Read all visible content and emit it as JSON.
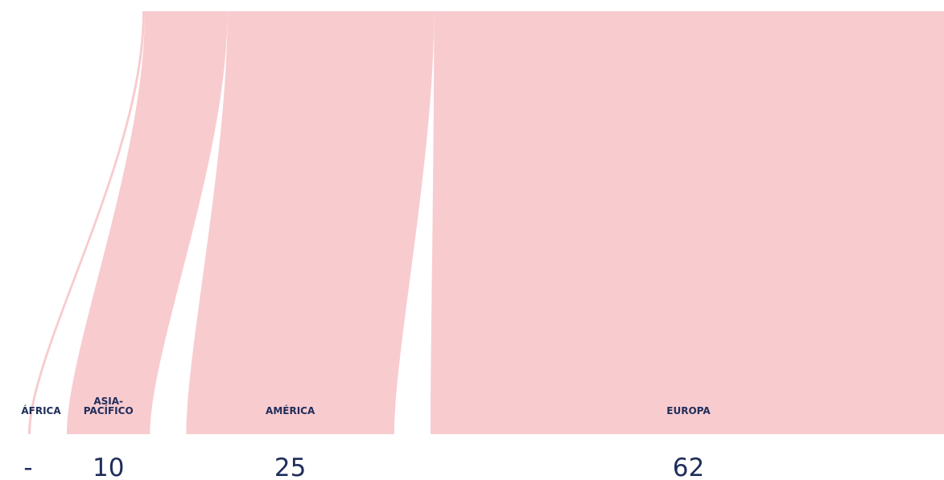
{
  "chart_data": {
    "type": "sankey",
    "title": "",
    "categories": [
      "ÁFRICA",
      "ASIA-\nPACÍFICO",
      "AMÉRICA",
      "EUROPA"
    ],
    "values": [
      null,
      10,
      25,
      62
    ],
    "value_labels": [
      "-",
      "10",
      "25",
      "62"
    ],
    "colors": {
      "flow": "#f8cbcf",
      "label": "#1f2d5a"
    }
  }
}
